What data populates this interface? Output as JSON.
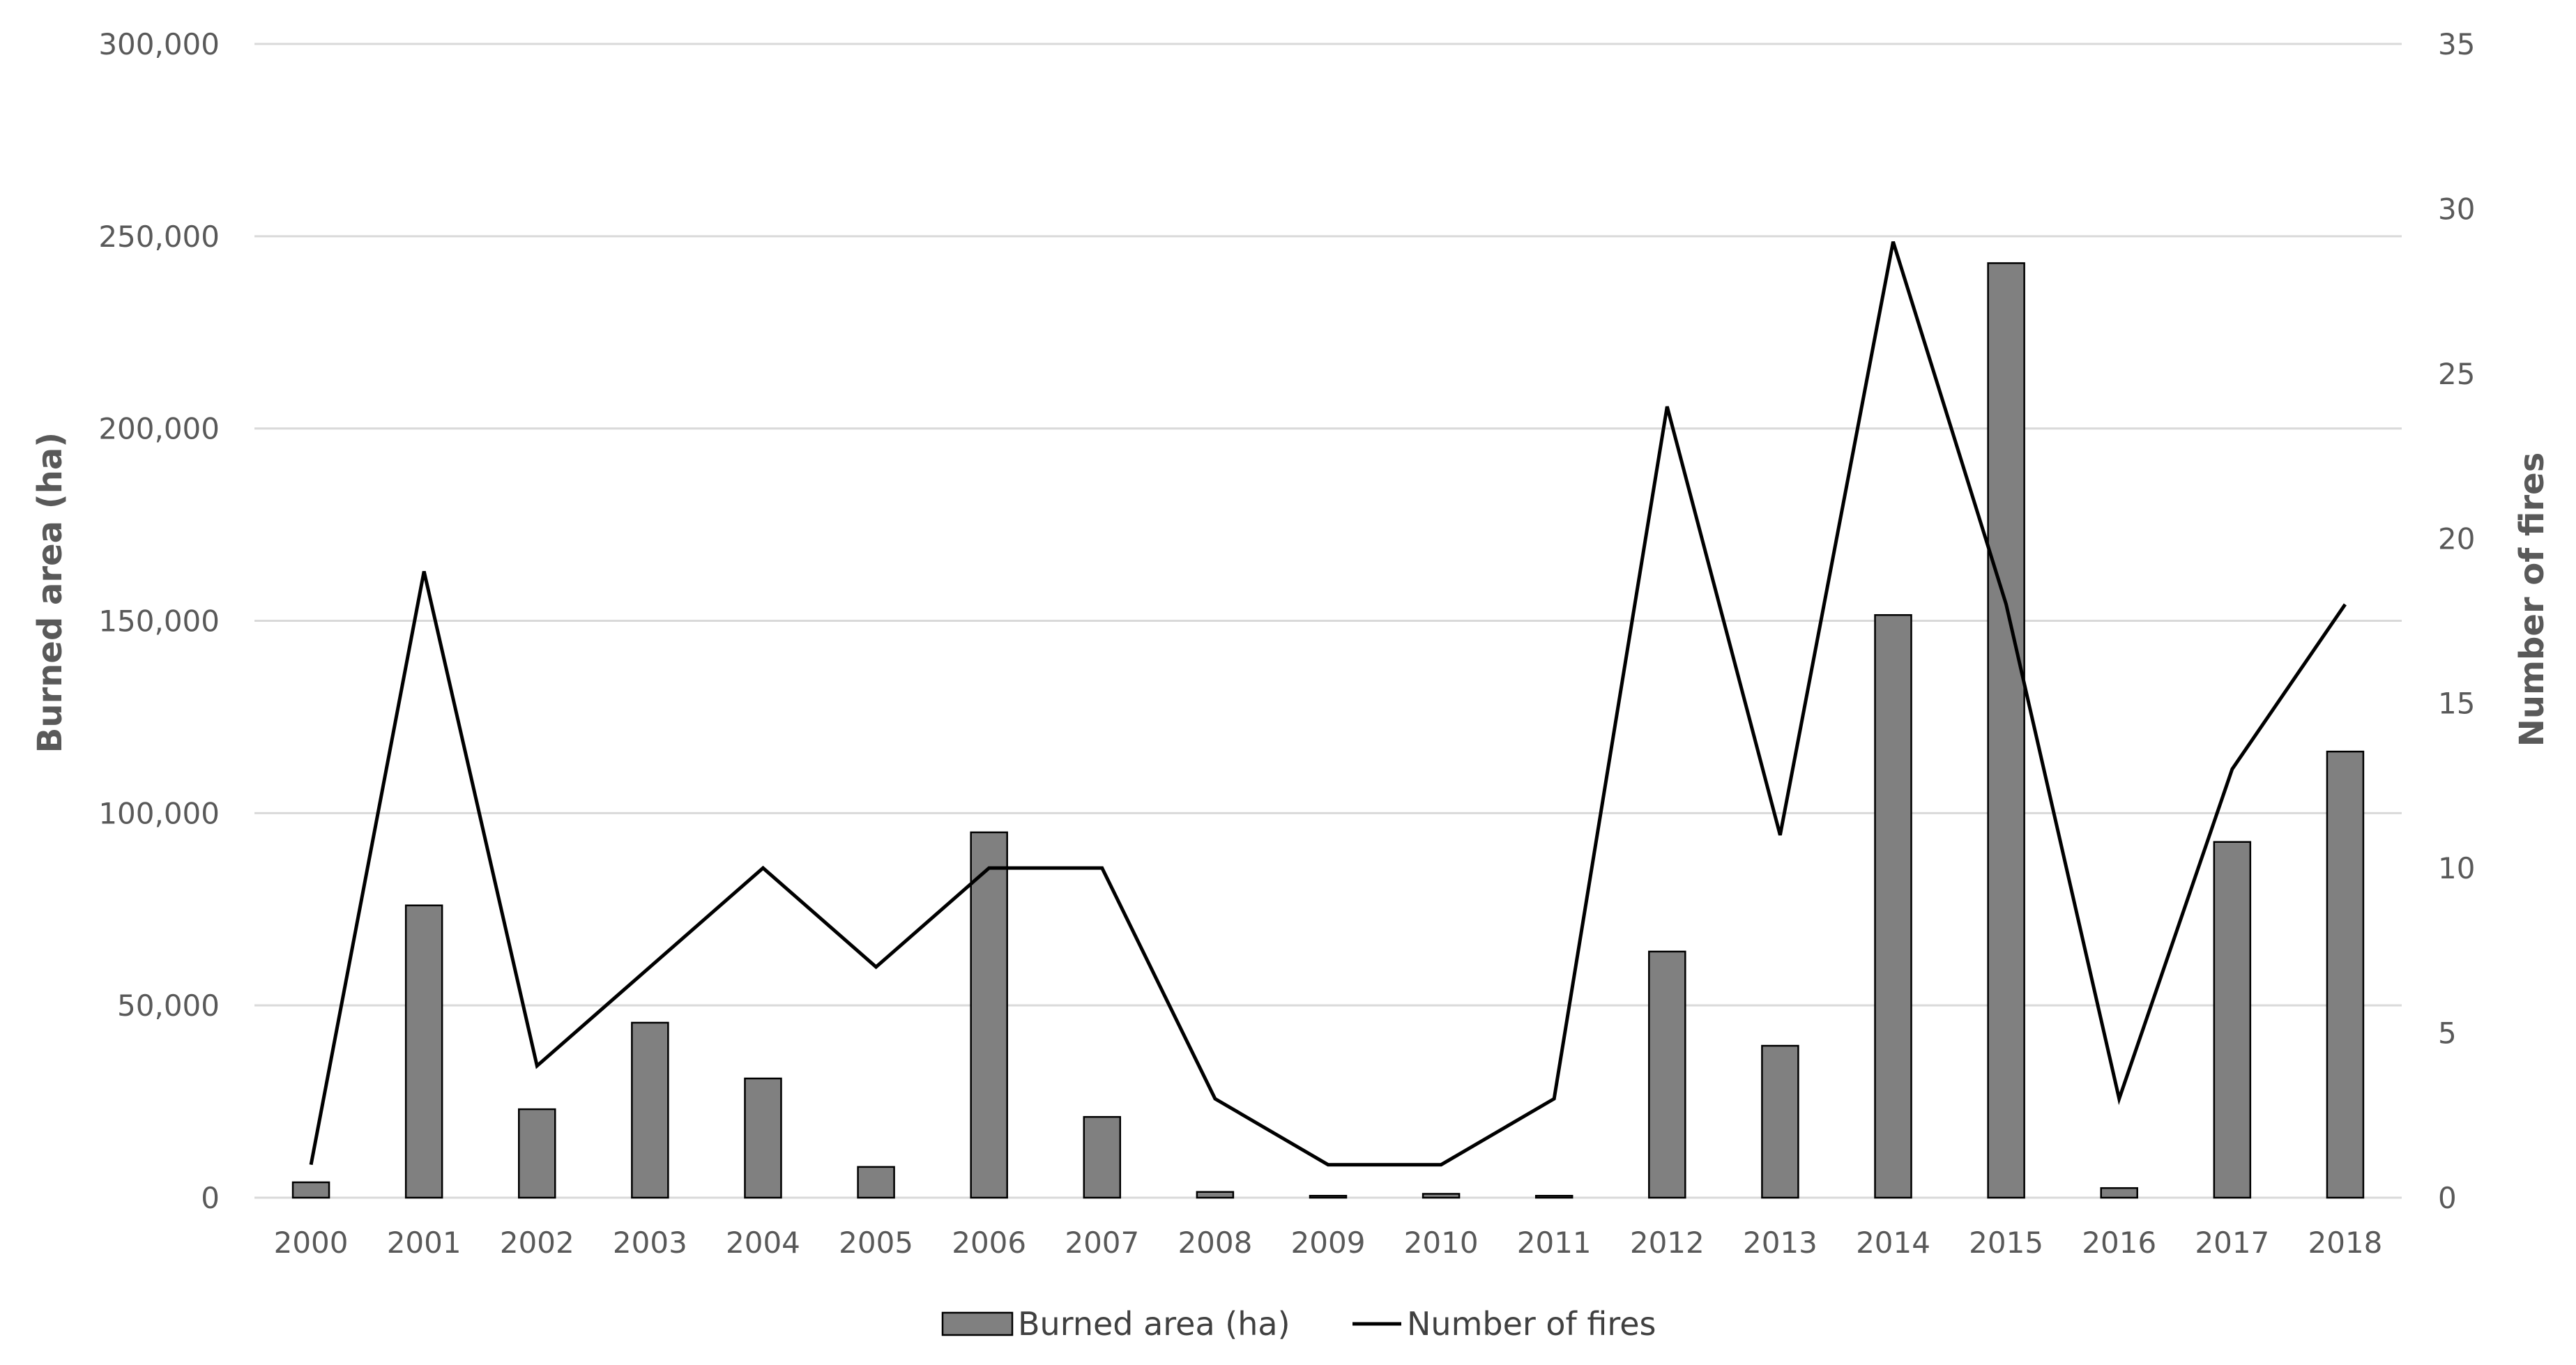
{
  "chart_data": {
    "type": "bar+line",
    "categories": [
      "2000",
      "2001",
      "2002",
      "2003",
      "2004",
      "2005",
      "2006",
      "2007",
      "2008",
      "2009",
      "2010",
      "2011",
      "2012",
      "2013",
      "2014",
      "2015",
      "2016",
      "2017",
      "2018"
    ],
    "series": [
      {
        "name": "Burned area (ha)",
        "type": "bar",
        "axis": "left",
        "color": "#808080",
        "values": [
          4000,
          76000,
          23000,
          45500,
          31000,
          8000,
          95000,
          21000,
          1500,
          500,
          1000,
          500,
          64000,
          39500,
          151500,
          243000,
          2500,
          92500,
          116000
        ]
      },
      {
        "name": "Number of fires",
        "type": "line",
        "axis": "right",
        "color": "#000000",
        "values": [
          1,
          19,
          4,
          7,
          10,
          7,
          10,
          10,
          3,
          1,
          1,
          3,
          24,
          11,
          29,
          18,
          3,
          13,
          18
        ]
      }
    ],
    "left_axis": {
      "label": "Burned area (ha)",
      "ylim": [
        0,
        300000
      ],
      "ticks": [
        0,
        50000,
        100000,
        150000,
        200000,
        250000,
        300000
      ],
      "tick_labels": [
        "0",
        "50,000",
        "100,000",
        "150,000",
        "200,000",
        "250,000",
        "300,000"
      ]
    },
    "right_axis": {
      "label": "Number of fires",
      "ylim": [
        0,
        35
      ],
      "ticks": [
        0,
        5,
        10,
        15,
        20,
        25,
        30,
        35
      ],
      "tick_labels": [
        "0",
        "5",
        "10",
        "15",
        "20",
        "25",
        "30",
        "35"
      ]
    },
    "grid": true,
    "legend": {
      "position": "bottom",
      "entries": [
        "Burned area (ha)",
        "Number of fires"
      ]
    }
  }
}
